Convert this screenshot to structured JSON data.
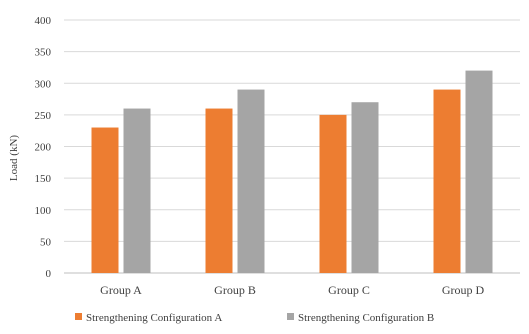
{
  "chart_data": {
    "type": "bar",
    "title": "",
    "xlabel": "",
    "ylabel": "Load (kN)",
    "ylim": [
      0,
      400
    ],
    "yticks": [
      0,
      50,
      100,
      150,
      200,
      250,
      300,
      350,
      400
    ],
    "grid": true,
    "legend_position": "bottom",
    "categories": [
      "Group A",
      "Group B",
      "Group C",
      "Group D"
    ],
    "series": [
      {
        "name": "Strengthening Configuration A",
        "color": "#ED7D31",
        "values": [
          230,
          260,
          250,
          290
        ]
      },
      {
        "name": "Strengthening Configuration B",
        "color": "#A5A5A5",
        "values": [
          260,
          290,
          270,
          320
        ]
      }
    ]
  }
}
